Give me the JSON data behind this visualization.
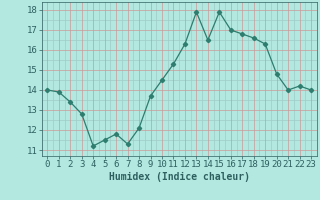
{
  "x": [
    0,
    1,
    2,
    3,
    4,
    5,
    6,
    7,
    8,
    9,
    10,
    11,
    12,
    13,
    14,
    15,
    16,
    17,
    18,
    19,
    20,
    21,
    22,
    23
  ],
  "y": [
    14.0,
    13.9,
    13.4,
    12.8,
    11.2,
    11.5,
    11.8,
    11.3,
    12.1,
    13.7,
    14.5,
    15.3,
    16.3,
    17.9,
    16.5,
    17.9,
    17.0,
    16.8,
    16.6,
    16.3,
    14.8,
    14.0,
    14.2,
    14.0
  ],
  "xlabel": "Humidex (Indice chaleur)",
  "xlim": [
    -0.5,
    23.5
  ],
  "ylim": [
    10.7,
    18.4
  ],
  "yticks": [
    11,
    12,
    13,
    14,
    15,
    16,
    17,
    18
  ],
  "xticks": [
    0,
    1,
    2,
    3,
    4,
    5,
    6,
    7,
    8,
    9,
    10,
    11,
    12,
    13,
    14,
    15,
    16,
    17,
    18,
    19,
    20,
    21,
    22,
    23
  ],
  "line_color": "#2e7d6e",
  "marker": "D",
  "marker_size": 2.2,
  "bg_color": "#b2e8e0",
  "grid_minor_color": "#cc9999",
  "grid_major_color": "#a0ccc8",
  "xlabel_fontsize": 7,
  "tick_fontsize": 6.5,
  "tick_color": "#2e6060"
}
